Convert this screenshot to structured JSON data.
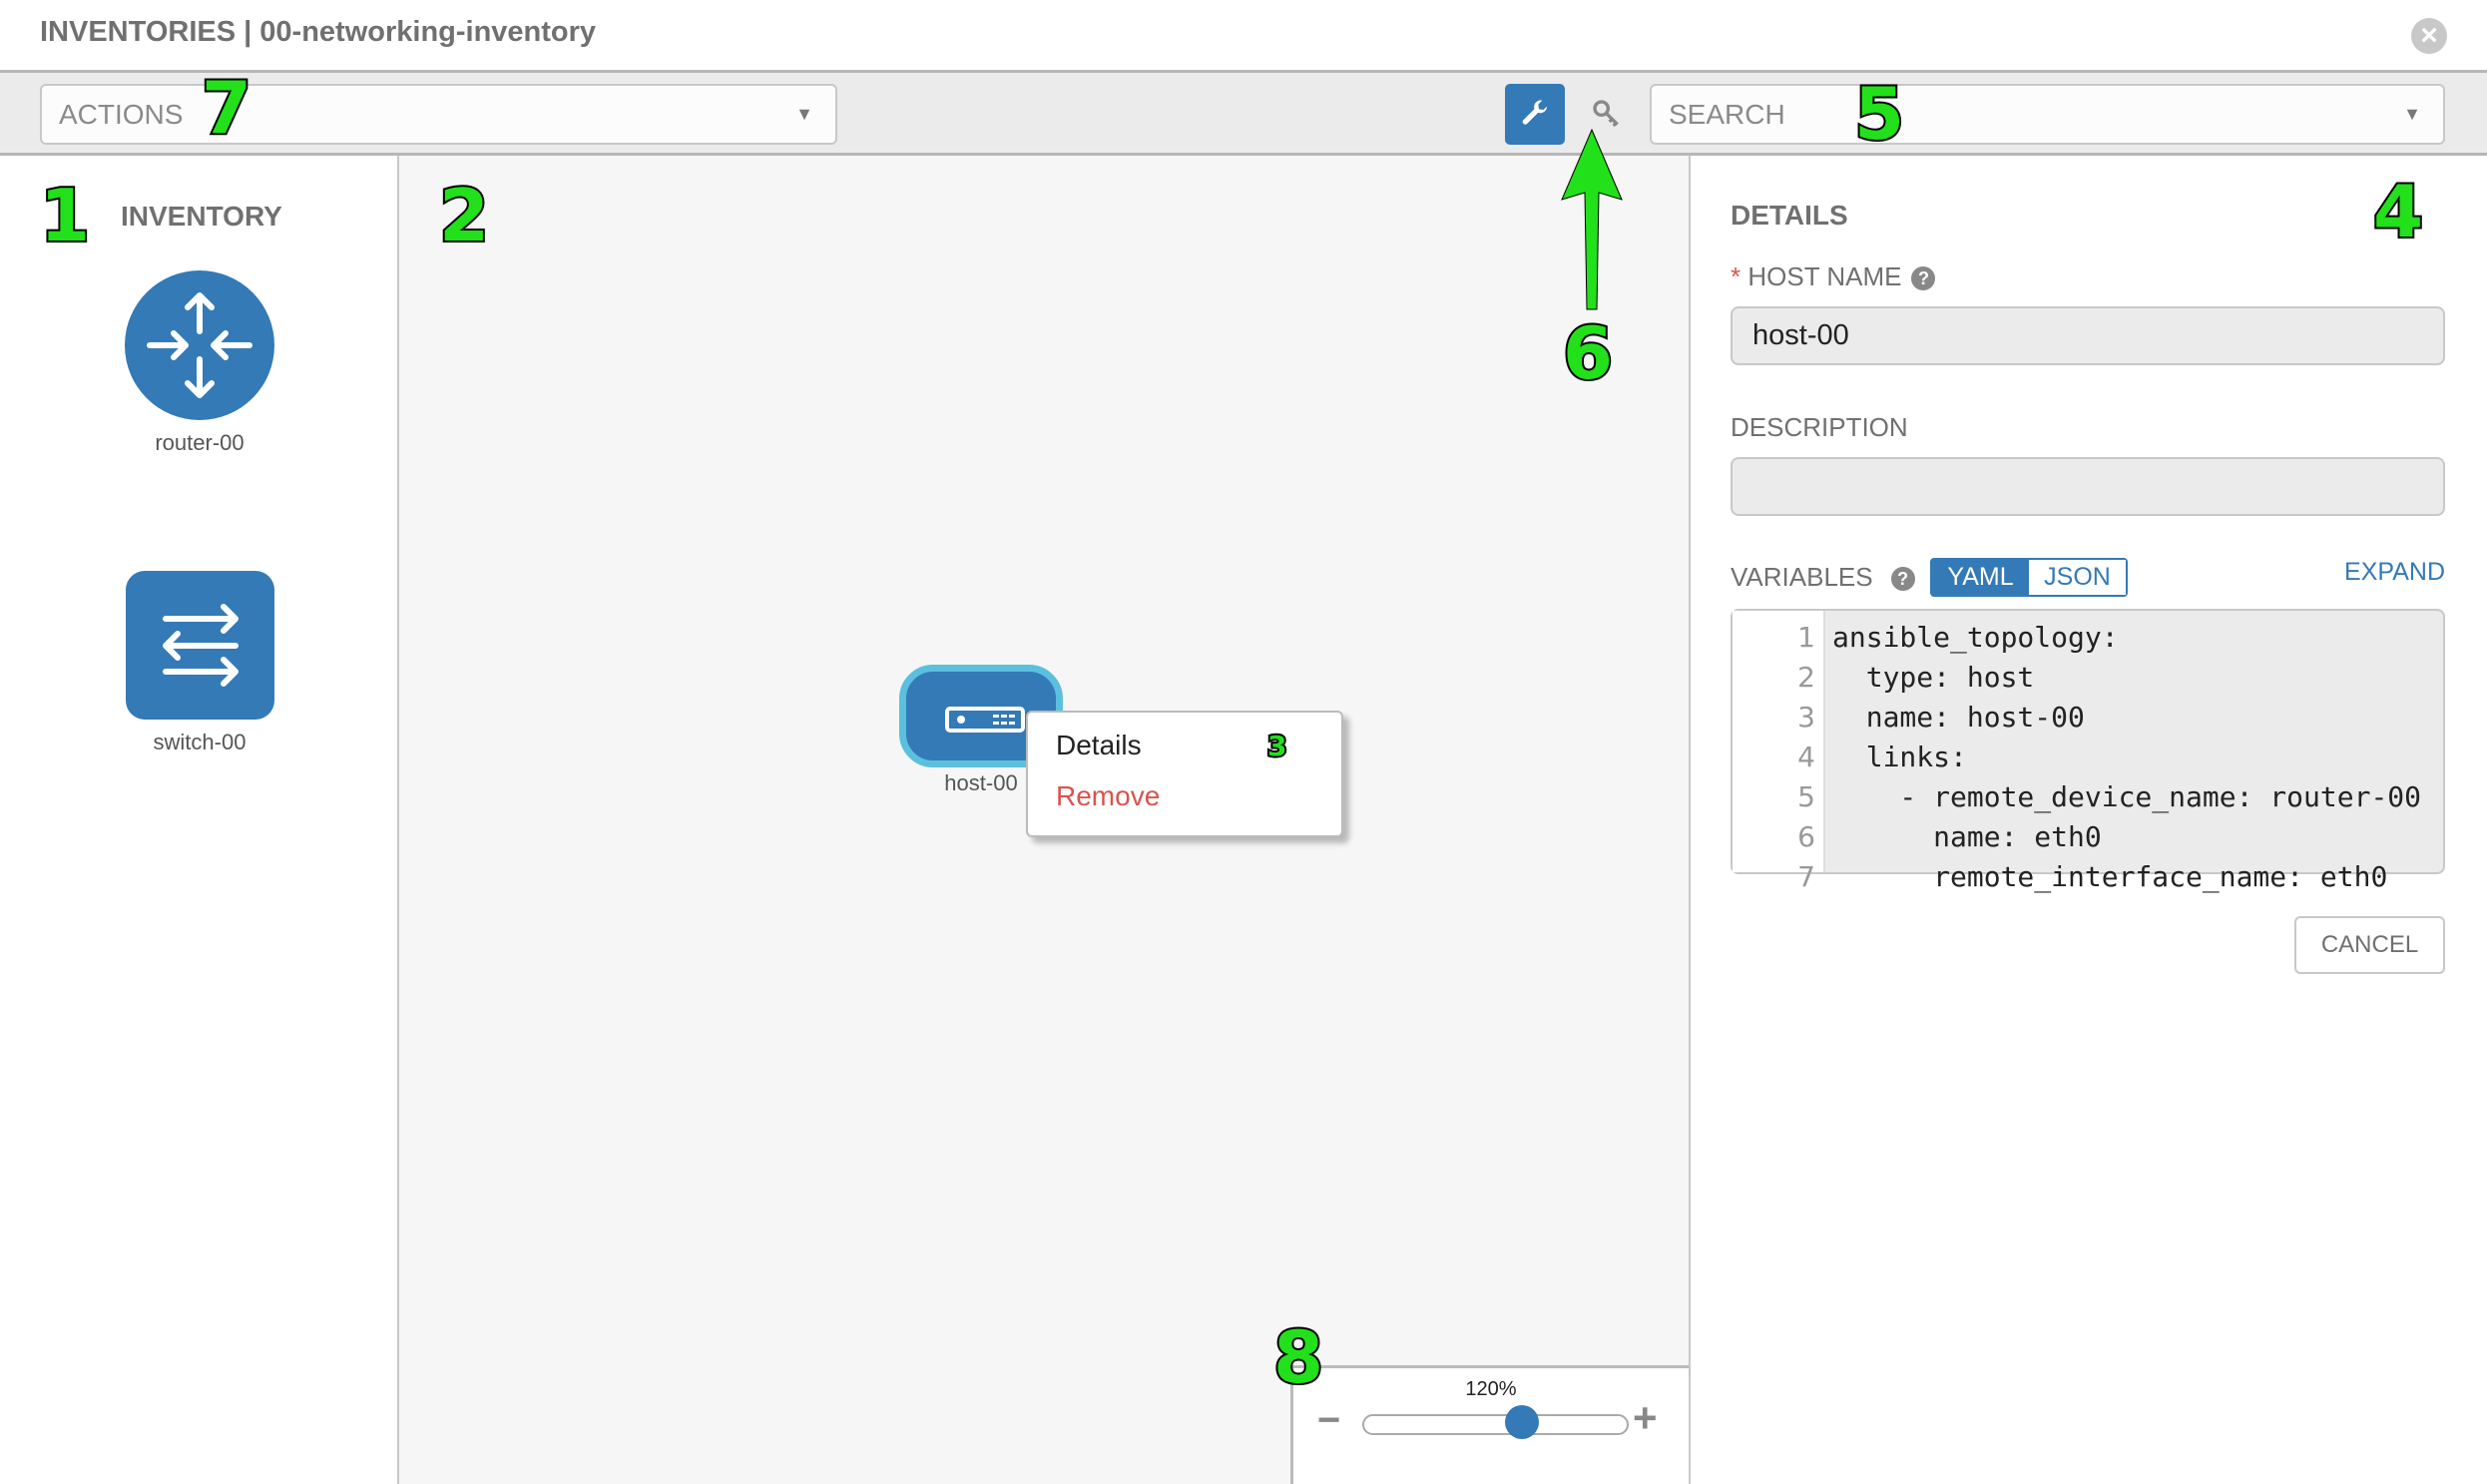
{
  "title": "INVENTORIES | 00-networking-inventory",
  "toolbar": {
    "actions_placeholder": "ACTIONS",
    "search_placeholder": "SEARCH"
  },
  "inventory": {
    "header": "INVENTORY",
    "items": [
      {
        "label": "router-00",
        "icon": "router-icon"
      },
      {
        "label": "switch-00",
        "icon": "switch-icon"
      }
    ]
  },
  "canvas": {
    "node": {
      "label": "host-00",
      "icon": "host-server-icon"
    },
    "context_menu": {
      "details": "Details",
      "remove": "Remove"
    }
  },
  "details": {
    "header": "DETAILS",
    "required_mark": "*",
    "host_name_label": "HOST NAME",
    "host_name_value": "host-00",
    "description_label": "DESCRIPTION",
    "description_value": "",
    "variables_label": "VARIABLES",
    "yaml": "YAML",
    "json": "JSON",
    "expand": "EXPAND",
    "code_lines": [
      "ansible_topology:",
      "  type: host",
      "  name: host-00",
      "  links:",
      "    - remote_device_name: router-00",
      "      name: eth0",
      "      remote_interface_name: eth0"
    ],
    "cancel": "CANCEL"
  },
  "zoom": {
    "label": "120%",
    "value_percent": 120,
    "slider_fraction": 0.6,
    "minus": "−",
    "plus": "+"
  },
  "annotations": [
    "1",
    "2",
    "3",
    "4",
    "5",
    "6",
    "7",
    "8"
  ],
  "colors": {
    "accent": "#337ab7",
    "selected_border": "#5bc0de",
    "remove": "#d9534f",
    "annotation": "#22e01a"
  }
}
